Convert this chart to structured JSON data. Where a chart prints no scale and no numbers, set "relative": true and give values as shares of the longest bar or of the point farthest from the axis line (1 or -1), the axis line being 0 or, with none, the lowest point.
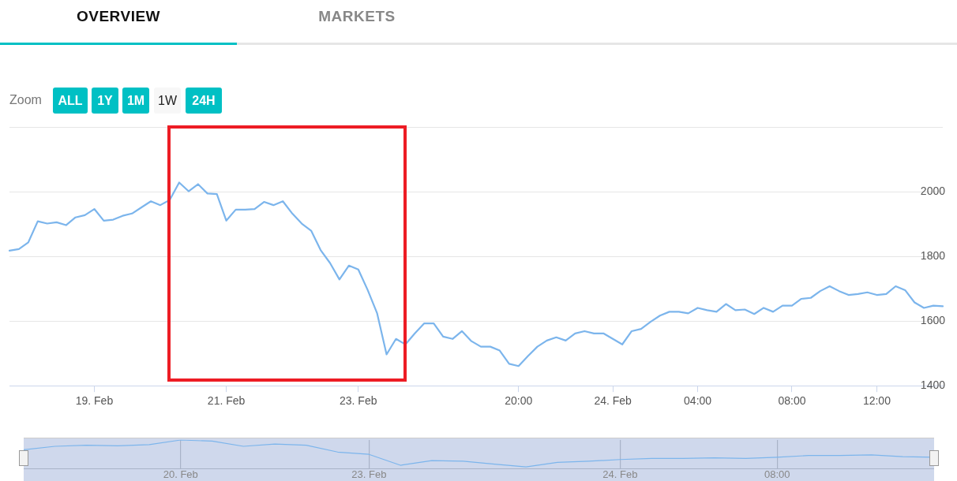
{
  "chart_data": [
    {
      "type": "line",
      "color": "#7cb5ec",
      "annotations": [
        "OVERVIEW",
        "MARKETS",
        "Zoom",
        "ALL",
        "1Y",
        "1M",
        "1W",
        "24H"
      ],
      "categories": [
        null,
        null,
        null,
        null,
        null,
        null,
        null,
        null,
        null,
        "19. Feb",
        null,
        null,
        null,
        null,
        null,
        null,
        null,
        null,
        null,
        null,
        null,
        null,
        null,
        "21. Feb",
        null,
        null,
        null,
        null,
        null,
        null,
        null,
        null,
        null,
        null,
        null,
        null,
        null,
        "23. Feb",
        null,
        null,
        null,
        null,
        null,
        null,
        null,
        null,
        null,
        null,
        null,
        null,
        null,
        null,
        null,
        null,
        "20:00",
        null,
        null,
        null,
        null,
        null,
        null,
        null,
        null,
        null,
        "24. Feb",
        null,
        null,
        null,
        null,
        null,
        null,
        null,
        null,
        "04:00",
        null,
        null,
        null,
        null,
        null,
        null,
        null,
        null,
        null,
        "08:00",
        null,
        null,
        null,
        null,
        null,
        null,
        null,
        null,
        "12:00",
        null,
        null,
        null,
        null,
        null,
        null,
        null
      ],
      "values": [
        1818,
        1823,
        1844,
        1909,
        1902,
        1906,
        1897,
        1921,
        1928,
        1947,
        1911,
        1914,
        1926,
        1933,
        1952,
        1971,
        1959,
        1975,
        2029,
        2002,
        2024,
        1995,
        1993,
        1911,
        1945,
        1945,
        1947,
        1969,
        1959,
        1971,
        1933,
        1902,
        1880,
        1820,
        1780,
        1729,
        1772,
        1760,
        1696,
        1624,
        1497,
        1545,
        1528,
        1562,
        1593,
        1593,
        1552,
        1545,
        1569,
        1538,
        1521,
        1521,
        1509,
        1468,
        1461,
        1492,
        1521,
        1540,
        1550,
        1540,
        1562,
        1569,
        1562,
        1562,
        1545,
        1528,
        1569,
        1576,
        1598,
        1617,
        1629,
        1629,
        1624,
        1641,
        1634,
        1629,
        1653,
        1634,
        1636,
        1622,
        1641,
        1629,
        1648,
        1648,
        1669,
        1672,
        1693,
        1708,
        1693,
        1681,
        1684,
        1689,
        1681,
        1684,
        1708,
        1696,
        1658,
        1641,
        1648,
        1646
      ],
      "ylim": [
        1400,
        2200
      ],
      "yticks": [
        1400,
        1600,
        1800,
        2000,
        {
          "value": 2200,
          "label": null
        }
      ],
      "grid": "y"
    },
    {
      "type": "line",
      "color": "#7cb5ec",
      "relative": true,
      "grid": "x",
      "categories": [
        null,
        null,
        null,
        null,
        null,
        "20. Feb",
        null,
        null,
        null,
        null,
        null,
        "23. Feb",
        null,
        null,
        null,
        null,
        null,
        null,
        null,
        "24. Feb",
        null,
        null,
        null,
        null,
        "08:00",
        null,
        null,
        null,
        null,
        null
      ],
      "values": [
        0.66,
        0.78,
        0.82,
        0.8,
        0.84,
        1,
        0.96,
        0.78,
        0.86,
        0.82,
        0.58,
        0.5,
        0.12,
        0.28,
        0.26,
        0.16,
        0.06,
        0.22,
        0.26,
        0.32,
        0.36,
        0.36,
        0.38,
        0.36,
        0.4,
        0.46,
        0.46,
        0.48,
        0.42,
        0.4
      ]
    }
  ]
}
